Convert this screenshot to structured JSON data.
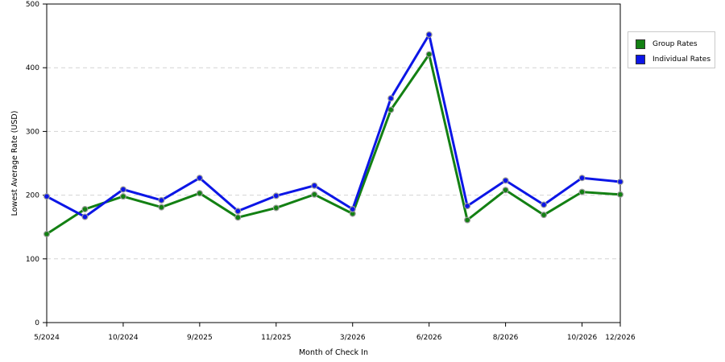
{
  "chart_data": {
    "type": "line",
    "xlabel": "Month of Check In",
    "ylabel": "Lowest Average Rate (USD)",
    "ylim": [
      0,
      500
    ],
    "yticks": [
      0,
      100,
      200,
      300,
      400,
      500
    ],
    "grid": true,
    "legend_position": "top-right",
    "x_tick_labels": [
      "5/2024",
      "10/2024",
      "9/2025",
      "11/2025",
      "3/2026",
      "6/2026",
      "8/2026",
      "10/2026",
      "12/2026"
    ],
    "x_tick_indices": [
      0,
      2,
      4,
      6,
      8,
      10,
      12,
      14,
      15
    ],
    "series": [
      {
        "name": "Group Rates",
        "color": "#138013",
        "values": [
          139,
          178,
          198,
          181,
          203,
          165,
          180,
          201,
          171,
          334,
          421,
          161,
          208,
          169,
          205,
          201
        ]
      },
      {
        "name": "Individual Rates",
        "color": "#0c16e6",
        "values": [
          198,
          166,
          209,
          192,
          227,
          175,
          199,
          215,
          178,
          352,
          452,
          183,
          223,
          185,
          227,
          221
        ]
      }
    ]
  }
}
